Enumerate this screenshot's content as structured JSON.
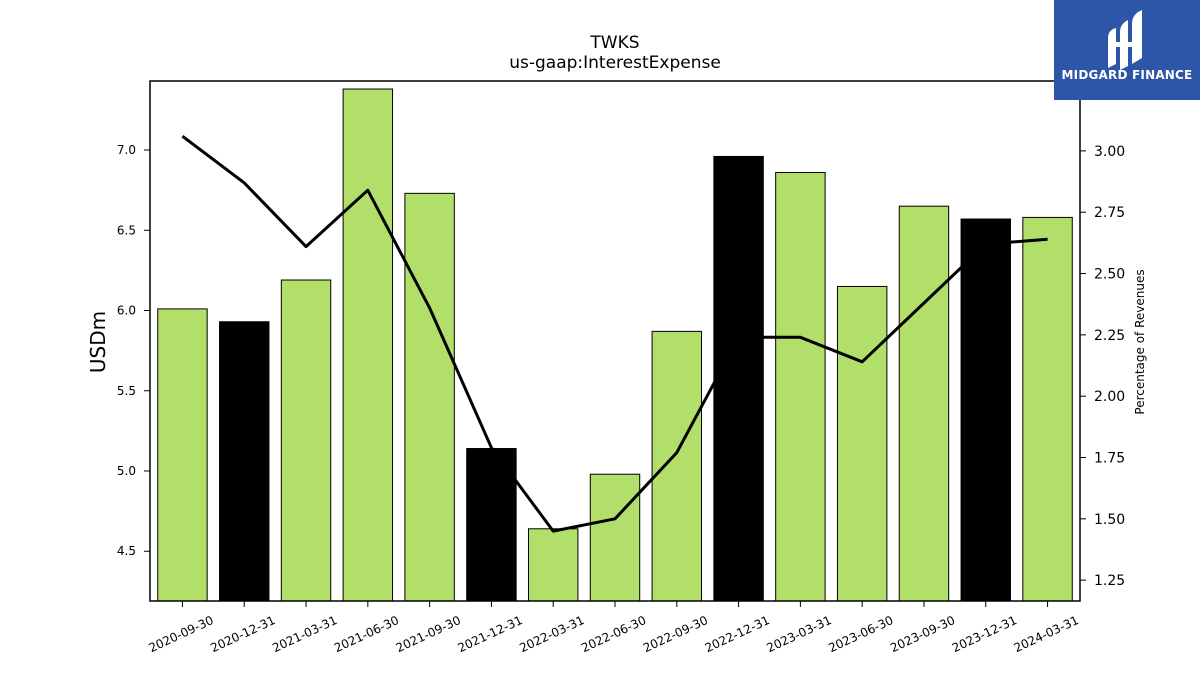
{
  "logo": {
    "text": "MIDGARD FINANCE"
  },
  "colors": {
    "bar_default": "#b2df6a",
    "bar_highlight": "#000000",
    "line": "#000000",
    "logo_bg": "#2d55a8"
  },
  "chart_data": {
    "type": "bar",
    "title": "TWKS",
    "subtitle": "us-gaap:InterestExpense",
    "ylabel": "USDm",
    "y2label": "Percentage of Revenues",
    "categories": [
      "2020-09-30",
      "2020-12-31",
      "2021-03-31",
      "2021-06-30",
      "2021-09-30",
      "2021-12-31",
      "2022-03-31",
      "2022-06-30",
      "2022-09-30",
      "2022-12-31",
      "2023-03-31",
      "2023-06-30",
      "2023-09-30",
      "2023-12-31",
      "2024-03-31"
    ],
    "series": [
      {
        "type": "bar",
        "axis": "left",
        "values": [
          6.01,
          5.93,
          6.19,
          7.38,
          6.73,
          5.14,
          4.64,
          4.98,
          5.87,
          6.96,
          6.86,
          6.15,
          6.65,
          6.57,
          6.58
        ],
        "highlight": [
          false,
          true,
          false,
          false,
          false,
          true,
          false,
          false,
          false,
          true,
          false,
          false,
          false,
          true,
          false
        ]
      },
      {
        "type": "line",
        "axis": "right",
        "values": [
          3.06,
          2.87,
          2.61,
          2.84,
          2.36,
          1.79,
          1.45,
          1.5,
          1.77,
          2.24,
          2.24,
          2.14,
          2.38,
          2.62,
          2.64
        ]
      }
    ],
    "ylim": [
      4.19,
      7.43
    ],
    "y2lim": [
      1.165,
      3.285
    ],
    "yticks": [
      "4.5",
      "5.0",
      "5.5",
      "6.0",
      "6.5",
      "7.0"
    ],
    "y2ticks": [
      "1.25",
      "1.50",
      "1.75",
      "2.00",
      "2.25",
      "2.50",
      "2.75",
      "3.00"
    ],
    "grid": false,
    "legend": "none"
  }
}
